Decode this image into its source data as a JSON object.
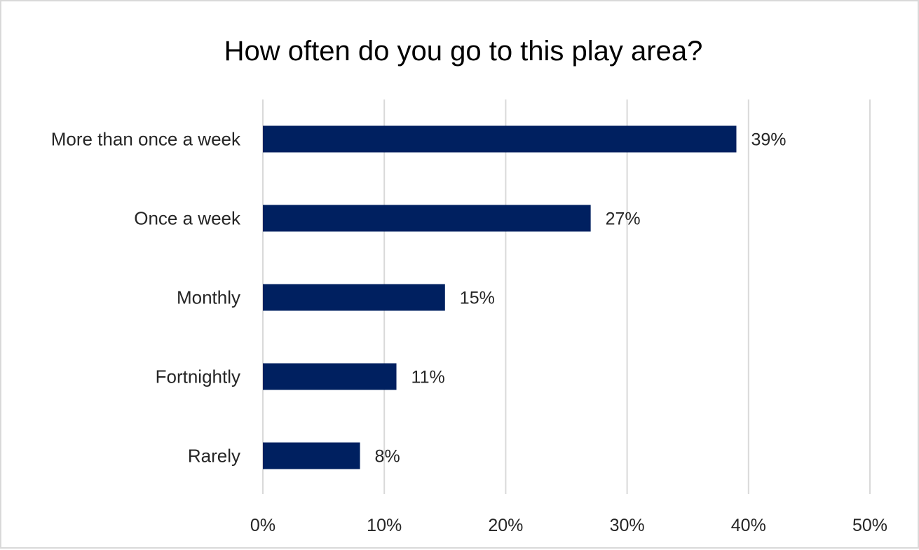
{
  "chart_data": {
    "type": "bar",
    "orientation": "horizontal",
    "title": "How often do you go to this play area?",
    "categories": [
      "More than once a week",
      "Once a week",
      "Monthly",
      "Fortnightly",
      "Rarely"
    ],
    "values": [
      39,
      27,
      15,
      11,
      8
    ],
    "data_labels": [
      "39%",
      "27%",
      "15%",
      "11%",
      "8%"
    ],
    "xlim": [
      0,
      50
    ],
    "x_ticks": [
      0,
      10,
      20,
      30,
      40,
      50
    ],
    "x_tick_labels": [
      "0%",
      "10%",
      "20%",
      "30%",
      "40%",
      "50%"
    ],
    "xlabel": "",
    "ylabel": "",
    "grid": true,
    "legend": "none",
    "colors": {
      "bar": "#002060",
      "grid": "#d9d9d9",
      "border": "#d9d9d9",
      "text": "#262626"
    }
  }
}
